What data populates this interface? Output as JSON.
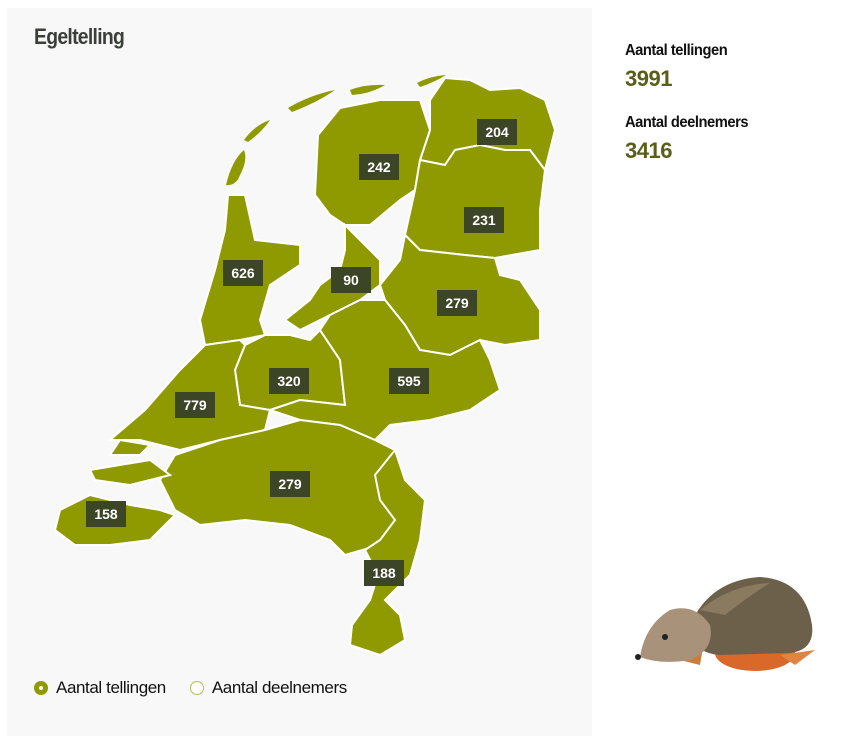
{
  "title": "Egeltelling",
  "stats": [
    {
      "label": "Aantal tellingen",
      "value": "3991"
    },
    {
      "label": "Aantal deelnemers",
      "value": "3416"
    }
  ],
  "legend": [
    {
      "label": "Aantal tellingen",
      "selected": true
    },
    {
      "label": "Aantal deelnemers",
      "selected": false
    }
  ],
  "colors": {
    "region_fill": "#8f9a00",
    "label_bg": "#3d4527",
    "border": "#ffffff",
    "background": "#f7f8f7"
  },
  "map": {
    "regions": [
      {
        "value": "204"
      },
      {
        "value": "242"
      },
      {
        "value": "231"
      },
      {
        "value": "626"
      },
      {
        "value": "90"
      },
      {
        "value": "279"
      },
      {
        "value": "320"
      },
      {
        "value": "595"
      },
      {
        "value": "779"
      },
      {
        "value": "279"
      },
      {
        "value": "158"
      },
      {
        "value": "188"
      }
    ]
  },
  "image": {
    "icon": "hedgehog-image"
  }
}
